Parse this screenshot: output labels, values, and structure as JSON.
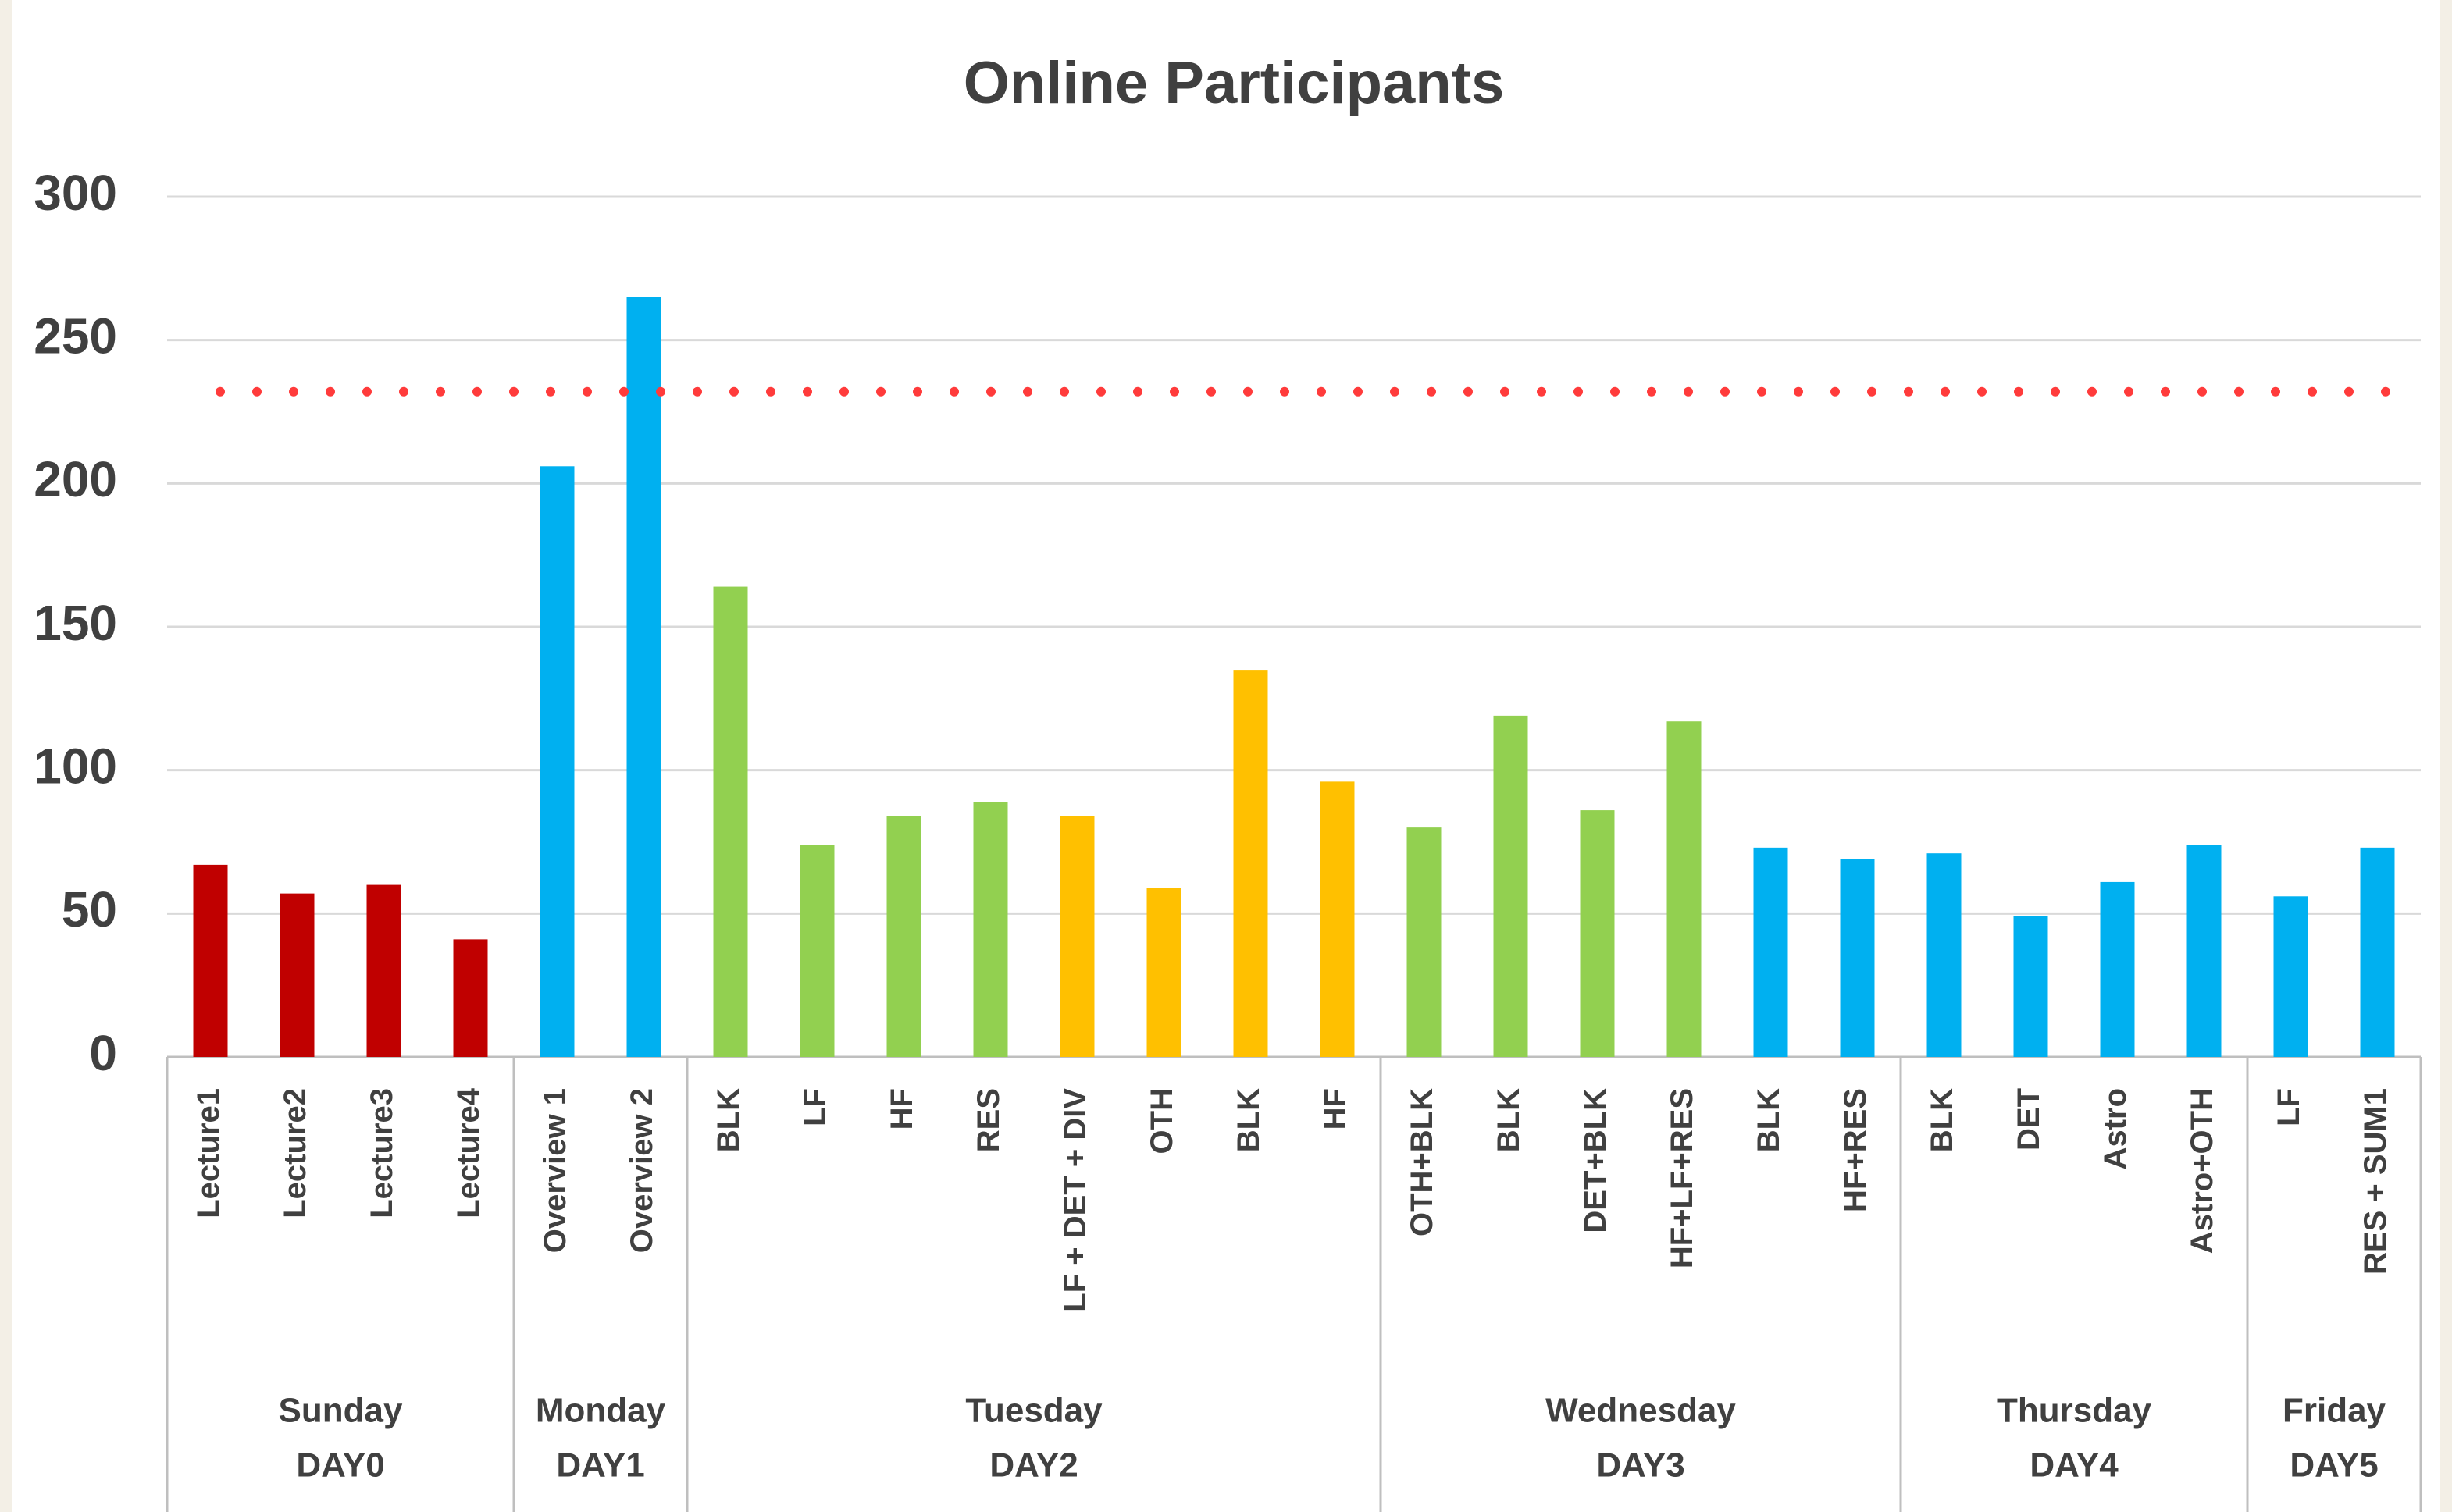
{
  "chart_data": {
    "type": "bar",
    "title": "Online Participants",
    "ylim": [
      0,
      300
    ],
    "yticks": [
      0,
      50,
      100,
      150,
      200,
      250,
      300
    ],
    "grid": true,
    "reference_line": {
      "value": 232,
      "color": "#ff3b3b"
    },
    "groups": [
      {
        "day": "Sunday",
        "label": "DAY0",
        "categories": [
          "Lecture1",
          "Lecture2",
          "Lecture3",
          "Lecture4"
        ],
        "values": [
          67,
          57,
          60,
          41
        ],
        "colors": [
          "#c00000",
          "#c00000",
          "#c00000",
          "#c00000"
        ]
      },
      {
        "day": "Monday",
        "label": "DAY1",
        "categories": [
          "Overview 1",
          "Overview 2"
        ],
        "values": [
          206,
          265
        ],
        "colors": [
          "#00b0f0",
          "#00b0f0"
        ]
      },
      {
        "day": "Tuesday",
        "label": "DAY2",
        "categories": [
          "BLK",
          "LF",
          "HF",
          "RES",
          "LF + DET + DIV",
          "OTH",
          "BLK",
          "HF"
        ],
        "values": [
          164,
          74,
          84,
          89,
          84,
          59,
          135,
          96
        ],
        "colors": [
          "#92d050",
          "#92d050",
          "#92d050",
          "#92d050",
          "#ffc000",
          "#ffc000",
          "#ffc000",
          "#ffc000"
        ]
      },
      {
        "day": "Wednesday",
        "label": "DAY3",
        "categories": [
          "OTH+BLK",
          "BLK",
          "DET+BLK",
          "HF+LF+RES",
          "BLK",
          "HF+RES"
        ],
        "values": [
          80,
          119,
          86,
          117,
          73,
          69
        ],
        "colors": [
          "#92d050",
          "#92d050",
          "#92d050",
          "#92d050",
          "#00b0f0",
          "#00b0f0"
        ]
      },
      {
        "day": "Thursday",
        "label": "DAY4",
        "categories": [
          "BLK",
          "DET",
          "Astro",
          "Astro+OTH"
        ],
        "values": [
          71,
          49,
          61,
          74
        ],
        "colors": [
          "#00b0f0",
          "#00b0f0",
          "#00b0f0",
          "#00b0f0"
        ]
      },
      {
        "day": "Friday",
        "label": "DAY5",
        "categories": [
          "LF",
          "RES + SUM1"
        ],
        "values": [
          56,
          73
        ],
        "colors": [
          "#00b0f0",
          "#00b0f0"
        ]
      }
    ]
  }
}
